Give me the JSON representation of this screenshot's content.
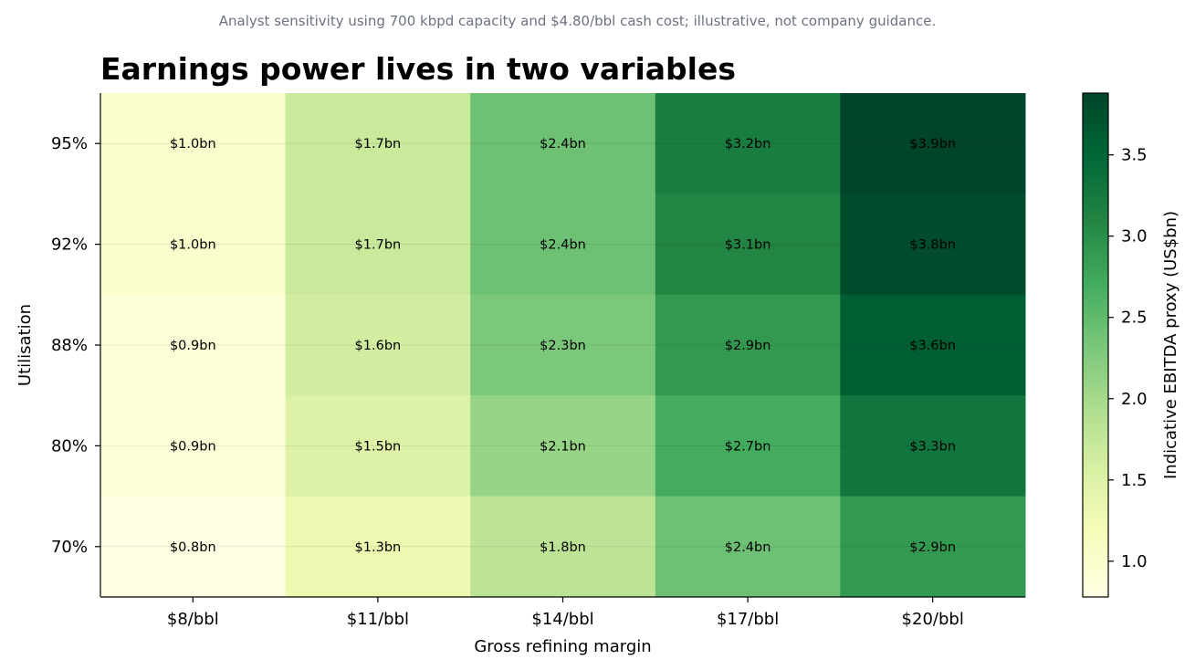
{
  "subtitle": "Analyst sensitivity using 700 kbpd capacity and $4.80/bbl cash cost; illustrative, not company guidance.",
  "chart_data": {
    "type": "heatmap",
    "title": "Earnings power lives in two variables",
    "xlabel": "Gross refining margin",
    "ylabel": "Utilisation",
    "x_categories": [
      "$8/bbl",
      "$11/bbl",
      "$14/bbl",
      "$17/bbl",
      "$20/bbl"
    ],
    "y_categories": [
      "95%",
      "92%",
      "88%",
      "80%",
      "70%"
    ],
    "values": [
      [
        1.0,
        1.7,
        2.4,
        3.2,
        3.9
      ],
      [
        1.0,
        1.7,
        2.4,
        3.1,
        3.8
      ],
      [
        0.9,
        1.6,
        2.3,
        2.9,
        3.6
      ],
      [
        0.9,
        1.5,
        2.1,
        2.7,
        3.3
      ],
      [
        0.8,
        1.3,
        1.8,
        2.4,
        2.9
      ]
    ],
    "cell_labels": [
      [
        "$1.0bn",
        "$1.7bn",
        "$2.4bn",
        "$3.2bn",
        "$3.9bn"
      ],
      [
        "$1.0bn",
        "$1.7bn",
        "$2.4bn",
        "$3.1bn",
        "$3.8bn"
      ],
      [
        "$0.9bn",
        "$1.6bn",
        "$2.3bn",
        "$2.9bn",
        "$3.6bn"
      ],
      [
        "$0.9bn",
        "$1.5bn",
        "$2.1bn",
        "$2.7bn",
        "$3.3bn"
      ],
      [
        "$0.8bn",
        "$1.3bn",
        "$1.8bn",
        "$2.4bn",
        "$2.9bn"
      ]
    ],
    "colorbar": {
      "label": "Indicative EBITDA proxy (US$bn)",
      "range": [
        0.78,
        3.88
      ],
      "ticks": [
        1.0,
        1.5,
        2.0,
        2.5,
        3.0,
        3.5
      ],
      "tick_labels": [
        "1.0",
        "1.5",
        "2.0",
        "2.5",
        "3.0",
        "3.5"
      ],
      "colormap": "Greens-yellow",
      "stops": [
        "#ffffe5",
        "#f7fcb9",
        "#d9f0a3",
        "#addd8e",
        "#78c679",
        "#41ab5d",
        "#238443",
        "#006837",
        "#004529"
      ]
    }
  }
}
